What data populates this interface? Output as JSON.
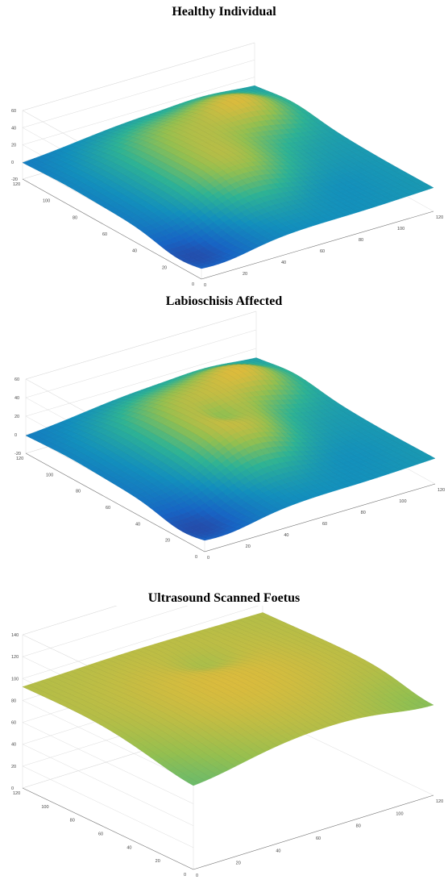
{
  "chart_data": [
    {
      "type": "surface",
      "title": "Healthy Individual",
      "xlim": [
        0,
        120
      ],
      "ylim": [
        0,
        120
      ],
      "zlim": [
        -20,
        60
      ],
      "x_ticks": [
        "0",
        "20",
        "40",
        "60",
        "80",
        "100",
        "120"
      ],
      "y_ticks": [
        "0",
        "20",
        "40",
        "60",
        "80",
        "100",
        "120"
      ],
      "z_ticks": [
        "-20",
        "0",
        "20",
        "40",
        "60"
      ],
      "grid": true,
      "colormap": "parula"
    },
    {
      "type": "surface",
      "title": "Labioschisis Affected",
      "xlim": [
        0,
        120
      ],
      "ylim": [
        0,
        120
      ],
      "zlim": [
        -20,
        60
      ],
      "x_ticks": [
        "0",
        "20",
        "40",
        "60",
        "80",
        "100",
        "120"
      ],
      "y_ticks": [
        "0",
        "20",
        "40",
        "60",
        "80",
        "100",
        "120"
      ],
      "z_ticks": [
        "-20",
        "0",
        "20",
        "40",
        "60"
      ],
      "grid": true,
      "colormap": "parula"
    },
    {
      "type": "surface",
      "title": "Ultrasound Scanned Foetus",
      "xlim": [
        0,
        120
      ],
      "ylim": [
        0,
        120
      ],
      "zlim": [
        0,
        140
      ],
      "x_ticks": [
        "0",
        "20",
        "40",
        "60",
        "80",
        "100",
        "120"
      ],
      "y_ticks": [
        "0",
        "20",
        "40",
        "60",
        "80",
        "100",
        "120"
      ],
      "z_ticks": [
        "0",
        "20",
        "40",
        "60",
        "80",
        "100",
        "120",
        "140"
      ],
      "grid": true,
      "colormap": "parula"
    }
  ]
}
